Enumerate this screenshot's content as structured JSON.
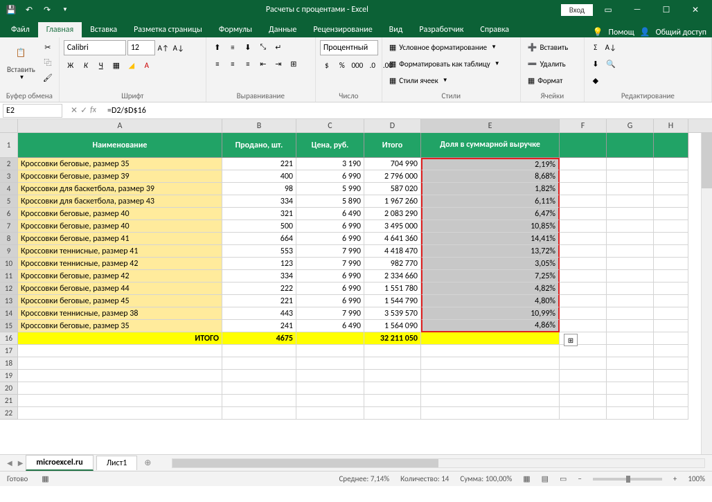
{
  "titlebar": {
    "title": "Расчеты с процентами - Excel",
    "login": "Вход"
  },
  "tabs": {
    "file": "Файл",
    "home": "Главная",
    "insert": "Вставка",
    "layout": "Разметка страницы",
    "formulas": "Формулы",
    "data": "Данные",
    "review": "Рецензирование",
    "view": "Вид",
    "developer": "Разработчик",
    "help": "Справка",
    "tell_me": "Помощ",
    "share": "Общий доступ"
  },
  "ribbon": {
    "clipboard": {
      "label": "Буфер обмена",
      "paste": "Вставить"
    },
    "font": {
      "label": "Шрифт",
      "name": "Calibri",
      "size": "12",
      "bold": "Ж",
      "italic": "К",
      "underline": "Ч"
    },
    "alignment": {
      "label": "Выравнивание"
    },
    "number": {
      "label": "Число",
      "format": "Процентный"
    },
    "styles": {
      "label": "Стили",
      "cond": "Условное форматирование",
      "table": "Форматировать как таблицу",
      "cell": "Стили ячеек"
    },
    "cells": {
      "label": "Ячейки",
      "insert": "Вставить",
      "delete": "Удалить",
      "format": "Формат"
    },
    "editing": {
      "label": "Редактирование"
    }
  },
  "formula_bar": {
    "name_box": "E2",
    "formula": "=D2/$D$16"
  },
  "columns": {
    "letters": [
      "A",
      "B",
      "C",
      "D",
      "E",
      "F",
      "G",
      "H"
    ],
    "widths": [
      295,
      107,
      98,
      82,
      200,
      68,
      68,
      50
    ],
    "headers": [
      "Наименование",
      "Продано, шт.",
      "Цена, руб.",
      "Итого",
      "Доля в суммарной выручке"
    ]
  },
  "rows": [
    {
      "name": "Кроссовки беговые, размер 35",
      "sold": "221",
      "price": "3 190",
      "total": "704 990",
      "share": "2,19%"
    },
    {
      "name": "Кроссовки беговые, размер 39",
      "sold": "400",
      "price": "6 990",
      "total": "2 796 000",
      "share": "8,68%"
    },
    {
      "name": "Кроссовки для баскетбола, размер 39",
      "sold": "98",
      "price": "5 990",
      "total": "587 020",
      "share": "1,82%"
    },
    {
      "name": "Кроссовки для баскетбола, размер 43",
      "sold": "334",
      "price": "5 890",
      "total": "1 967 260",
      "share": "6,11%"
    },
    {
      "name": "Кроссовки беговые, размер 40",
      "sold": "321",
      "price": "6 490",
      "total": "2 083 290",
      "share": "6,47%"
    },
    {
      "name": "Кроссовки беговые, размер 40",
      "sold": "500",
      "price": "6 990",
      "total": "3 495 000",
      "share": "10,85%"
    },
    {
      "name": "Кроссовки беговые, размер 41",
      "sold": "664",
      "price": "6 990",
      "total": "4 641 360",
      "share": "14,41%"
    },
    {
      "name": "Кроссовки теннисные, размер 41",
      "sold": "553",
      "price": "7 990",
      "total": "4 418 470",
      "share": "13,72%"
    },
    {
      "name": "Кроссовки теннисные, размер 42",
      "sold": "123",
      "price": "7 990",
      "total": "982 770",
      "share": "3,05%"
    },
    {
      "name": "Кроссовки беговые, размер 42",
      "sold": "334",
      "price": "6 990",
      "total": "2 334 660",
      "share": "7,25%"
    },
    {
      "name": "Кроссовки беговые, размер 44",
      "sold": "222",
      "price": "6 990",
      "total": "1 551 780",
      "share": "4,82%"
    },
    {
      "name": "Кроссовки беговые, размер 45",
      "sold": "221",
      "price": "6 990",
      "total": "1 544 790",
      "share": "4,80%"
    },
    {
      "name": "Кроссовки теннисные, размер 38",
      "sold": "443",
      "price": "7 990",
      "total": "3 539 570",
      "share": "10,99%"
    },
    {
      "name": "Кроссовки беговые, размер 35",
      "sold": "241",
      "price": "6 490",
      "total": "1 564 090",
      "share": "4,86%"
    }
  ],
  "totals": {
    "label": "ИТОГО",
    "sold": "4675",
    "total": "32 211 050"
  },
  "sheets": {
    "s1": "microexcel.ru",
    "s2": "Лист1"
  },
  "status": {
    "ready": "Готово",
    "avg_label": "Среднее:",
    "avg": "7,14%",
    "count_label": "Количество:",
    "count": "14",
    "sum_label": "Сумма:",
    "sum": "100,00%",
    "zoom": "100%"
  }
}
